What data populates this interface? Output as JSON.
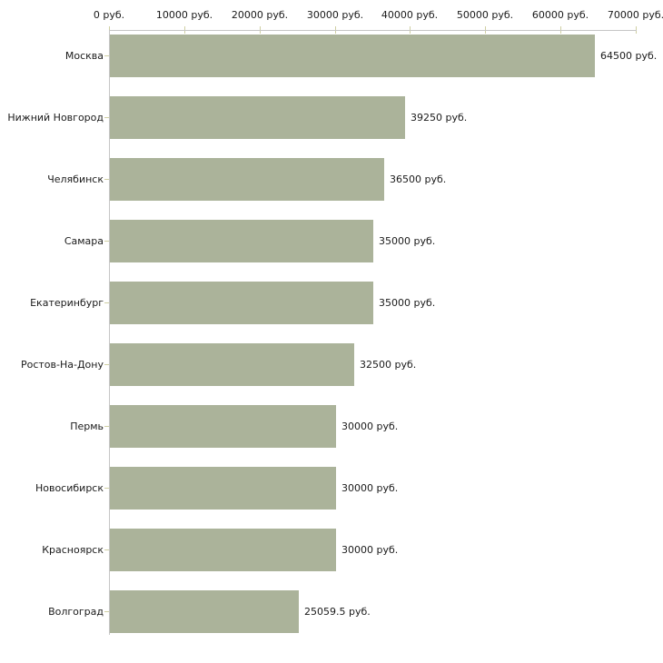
{
  "chart_data": {
    "type": "bar",
    "orientation": "horizontal",
    "title": "",
    "xlabel": "",
    "ylabel": "",
    "grid": false,
    "legend": "none",
    "xlim": [
      0,
      70000
    ],
    "categories": [
      "Москва",
      "Нижний Новгород",
      "Челябинск",
      "Самара",
      "Екатеринбург",
      "Ростов-На-Дону",
      "Пермь",
      "Новосибирск",
      "Красноярск",
      "Волгоград"
    ],
    "values": [
      64500,
      39250,
      36500,
      35000,
      35000,
      32500,
      30000,
      30000,
      30000,
      25059.5
    ],
    "value_labels": [
      "64500 руб.",
      "39250 руб.",
      "36500 руб.",
      "35000 руб.",
      "35000 руб.",
      "32500 руб.",
      "30000 руб.",
      "30000 руб.",
      "30000 руб.",
      "25059.5 руб."
    ],
    "x_ticks": [
      {
        "value": 0,
        "label": "0 руб."
      },
      {
        "value": 10000,
        "label": "10000 руб."
      },
      {
        "value": 20000,
        "label": "20000 руб."
      },
      {
        "value": 30000,
        "label": "30000 руб."
      },
      {
        "value": 40000,
        "label": "40000 руб."
      },
      {
        "value": 50000,
        "label": "50000 руб."
      },
      {
        "value": 60000,
        "label": "60000 руб."
      },
      {
        "value": 70000,
        "label": "70000 руб."
      }
    ],
    "colors": {
      "bar": "#abb39a",
      "axis_line": "#c6c6c6",
      "tick": "#cfcfa2",
      "text": "#1a1a1a",
      "background": "#ffffff"
    }
  }
}
